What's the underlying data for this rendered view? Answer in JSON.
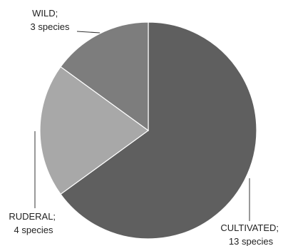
{
  "chart_data": {
    "type": "pie",
    "title": "",
    "slices": [
      {
        "category": "CULTIVATED;",
        "value": 13,
        "value_label": "13 species",
        "color": "#5f5f5f"
      },
      {
        "category": "RUDERAL;",
        "value": 4,
        "value_label": "4 species",
        "color": "#a8a8a8"
      },
      {
        "category": "WILD;",
        "value": 3,
        "value_label": "3 species",
        "color": "#7d7d7d"
      }
    ],
    "start": "12 o'clock",
    "direction": "clockwise",
    "legend": "none",
    "labels": "outside with leader lines"
  }
}
